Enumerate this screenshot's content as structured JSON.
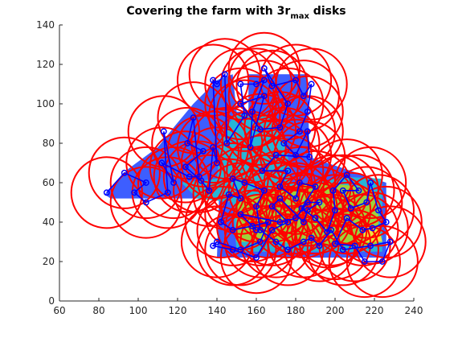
{
  "chart_data": {
    "type": "scatter",
    "title": "Covering the farm with 3r",
    "title_subscript": "max",
    "title_suffix": " disks",
    "xlabel": "",
    "ylabel": "",
    "xlim": [
      60,
      240
    ],
    "ylim": [
      0,
      140
    ],
    "xticks": [
      60,
      80,
      100,
      120,
      140,
      160,
      180,
      200,
      220,
      240
    ],
    "yticks": [
      0,
      20,
      40,
      60,
      80,
      100,
      120,
      140
    ],
    "grid": false,
    "legend": "none",
    "disk_radius": 7.5,
    "colors": {
      "disk": "#ff0000",
      "path": "#0000ff",
      "farm_low": "#3d5eff",
      "farm_mid": "#27b5d6",
      "farm_high": "#9fd13a",
      "farm_peak": "#f2e23a"
    },
    "farm_regions": [
      {
        "polygon": [
          [
            83,
            54
          ],
          [
            95,
            67
          ],
          [
            110,
            78
          ],
          [
            118,
            88
          ],
          [
            128,
            100
          ],
          [
            140,
            112
          ],
          [
            148,
            115
          ],
          [
            150,
            96
          ],
          [
            156,
            96
          ],
          [
            156,
            115
          ],
          [
            186,
            115
          ],
          [
            187,
            73
          ],
          [
            226,
            60
          ],
          [
            226,
            22
          ],
          [
            140,
            22
          ],
          [
            141,
            52
          ],
          [
            128,
            52
          ],
          [
            100,
            52
          ],
          [
            86,
            52
          ]
        ],
        "level": "low"
      },
      {
        "polygon": [
          [
            122,
            60
          ],
          [
            140,
            62
          ],
          [
            142,
            85
          ],
          [
            150,
            95
          ],
          [
            165,
            95
          ],
          [
            175,
            80
          ],
          [
            178,
            60
          ],
          [
            190,
            60
          ],
          [
            205,
            63
          ],
          [
            224,
            62
          ],
          [
            224,
            25
          ],
          [
            150,
            25
          ],
          [
            148,
            50
          ],
          [
            130,
            52
          ]
        ],
        "level": "mid"
      },
      {
        "polygon": [
          [
            150,
            52
          ],
          [
            165,
            55
          ],
          [
            178,
            58
          ],
          [
            195,
            60
          ],
          [
            212,
            58
          ],
          [
            222,
            55
          ],
          [
            222,
            28
          ],
          [
            200,
            28
          ],
          [
            170,
            30
          ],
          [
            150,
            30
          ]
        ],
        "level": "high"
      },
      {
        "polygon": [
          [
            214,
            38
          ],
          [
            222,
            38
          ],
          [
            224,
            30
          ],
          [
            215,
            30
          ]
        ],
        "level": "peak"
      }
    ],
    "path": [
      [
        84,
        55
      ],
      [
        93,
        65
      ],
      [
        104,
        60
      ],
      [
        98,
        55
      ],
      [
        104,
        50
      ],
      [
        115,
        55
      ],
      [
        113,
        86
      ],
      [
        118,
        60
      ],
      [
        112,
        70
      ],
      [
        126,
        63
      ],
      [
        131,
        63
      ],
      [
        128,
        93
      ],
      [
        125,
        80
      ],
      [
        133,
        76
      ],
      [
        124,
        68
      ],
      [
        132,
        61
      ],
      [
        136,
        56
      ],
      [
        138,
        78
      ],
      [
        140,
        70
      ],
      [
        138,
        112
      ],
      [
        140,
        110
      ],
      [
        144,
        115
      ],
      [
        145,
        80
      ],
      [
        154,
        94
      ],
      [
        152,
        110
      ],
      [
        160,
        110
      ],
      [
        164,
        112
      ],
      [
        158,
        96
      ],
      [
        157,
        78
      ],
      [
        164,
        104
      ],
      [
        152,
        100
      ],
      [
        162,
        87
      ],
      [
        172,
        88
      ],
      [
        176,
        100
      ],
      [
        164,
        118
      ],
      [
        168,
        109
      ],
      [
        180,
        112
      ],
      [
        184,
        104
      ],
      [
        188,
        110
      ],
      [
        186,
        96
      ],
      [
        182,
        86
      ],
      [
        174,
        80
      ],
      [
        180,
        74
      ],
      [
        186,
        86
      ],
      [
        187,
        73
      ],
      [
        170,
        74
      ],
      [
        163,
        66
      ],
      [
        176,
        66
      ],
      [
        172,
        58
      ],
      [
        180,
        52
      ],
      [
        182,
        60
      ],
      [
        190,
        58
      ],
      [
        183,
        47
      ],
      [
        190,
        42
      ],
      [
        196,
        35
      ],
      [
        200,
        46
      ],
      [
        199,
        56
      ],
      [
        206,
        64
      ],
      [
        212,
        56
      ],
      [
        204,
        56
      ],
      [
        208,
        47
      ],
      [
        216,
        50
      ],
      [
        218,
        60
      ],
      [
        222,
        46
      ],
      [
        226,
        40
      ],
      [
        219,
        37
      ],
      [
        214,
        36
      ],
      [
        206,
        42
      ],
      [
        200,
        29
      ],
      [
        210,
        28
      ],
      [
        215,
        20
      ],
      [
        224,
        20
      ],
      [
        228,
        30
      ],
      [
        218,
        28
      ],
      [
        204,
        26
      ],
      [
        198,
        36
      ],
      [
        192,
        28
      ],
      [
        188,
        32
      ],
      [
        184,
        30
      ],
      [
        176,
        26
      ],
      [
        170,
        30
      ],
      [
        162,
        36
      ],
      [
        160,
        48
      ],
      [
        164,
        56
      ],
      [
        154,
        60
      ],
      [
        148,
        62
      ],
      [
        152,
        52
      ],
      [
        146,
        54
      ],
      [
        142,
        40
      ],
      [
        148,
        36
      ],
      [
        158,
        38
      ],
      [
        166,
        40
      ],
      [
        162,
        30
      ],
      [
        152,
        26
      ],
      [
        140,
        30
      ],
      [
        138,
        28
      ],
      [
        148,
        26
      ],
      [
        160,
        22
      ],
      [
        168,
        36
      ],
      [
        176,
        40
      ],
      [
        168,
        48
      ],
      [
        172,
        52
      ],
      [
        184,
        40
      ],
      [
        186,
        46
      ],
      [
        192,
        50
      ],
      [
        186,
        50
      ],
      [
        180,
        42
      ],
      [
        172,
        40
      ],
      [
        152,
        44
      ],
      [
        160,
        36
      ]
    ],
    "disks": [
      [
        84,
        55
      ],
      [
        93,
        65
      ],
      [
        104,
        60
      ],
      [
        104,
        50
      ],
      [
        115,
        55
      ],
      [
        113,
        86
      ],
      [
        118,
        60
      ],
      [
        112,
        70
      ],
      [
        126,
        63
      ],
      [
        131,
        63
      ],
      [
        128,
        93
      ],
      [
        125,
        80
      ],
      [
        133,
        76
      ],
      [
        124,
        68
      ],
      [
        136,
        56
      ],
      [
        138,
        78
      ],
      [
        140,
        70
      ],
      [
        138,
        112
      ],
      [
        144,
        115
      ],
      [
        145,
        80
      ],
      [
        154,
        94
      ],
      [
        152,
        110
      ],
      [
        160,
        110
      ],
      [
        164,
        112
      ],
      [
        158,
        96
      ],
      [
        157,
        78
      ],
      [
        164,
        104
      ],
      [
        152,
        100
      ],
      [
        162,
        87
      ],
      [
        172,
        88
      ],
      [
        176,
        100
      ],
      [
        164,
        118
      ],
      [
        168,
        109
      ],
      [
        180,
        112
      ],
      [
        184,
        104
      ],
      [
        188,
        110
      ],
      [
        186,
        96
      ],
      [
        182,
        86
      ],
      [
        174,
        80
      ],
      [
        180,
        74
      ],
      [
        186,
        86
      ],
      [
        187,
        73
      ],
      [
        170,
        74
      ],
      [
        163,
        66
      ],
      [
        176,
        66
      ],
      [
        172,
        58
      ],
      [
        180,
        52
      ],
      [
        182,
        60
      ],
      [
        190,
        58
      ],
      [
        183,
        47
      ],
      [
        190,
        42
      ],
      [
        196,
        35
      ],
      [
        200,
        46
      ],
      [
        199,
        56
      ],
      [
        206,
        64
      ],
      [
        212,
        56
      ],
      [
        204,
        56
      ],
      [
        208,
        47
      ],
      [
        216,
        50
      ],
      [
        218,
        60
      ],
      [
        222,
        46
      ],
      [
        226,
        40
      ],
      [
        219,
        37
      ],
      [
        214,
        36
      ],
      [
        206,
        42
      ],
      [
        200,
        29
      ],
      [
        210,
        28
      ],
      [
        215,
        20
      ],
      [
        224,
        20
      ],
      [
        228,
        30
      ],
      [
        204,
        26
      ],
      [
        198,
        36
      ],
      [
        192,
        28
      ],
      [
        184,
        30
      ],
      [
        176,
        26
      ],
      [
        170,
        30
      ],
      [
        162,
        36
      ],
      [
        160,
        48
      ],
      [
        164,
        56
      ],
      [
        154,
        60
      ],
      [
        148,
        62
      ],
      [
        152,
        52
      ],
      [
        146,
        54
      ],
      [
        142,
        40
      ],
      [
        148,
        36
      ],
      [
        158,
        38
      ],
      [
        166,
        40
      ],
      [
        162,
        30
      ],
      [
        152,
        26
      ],
      [
        140,
        30
      ],
      [
        148,
        26
      ],
      [
        160,
        22
      ],
      [
        168,
        36
      ],
      [
        176,
        40
      ],
      [
        168,
        48
      ],
      [
        172,
        52
      ],
      [
        184,
        40
      ],
      [
        186,
        46
      ],
      [
        192,
        50
      ],
      [
        180,
        42
      ],
      [
        152,
        44
      ]
    ]
  }
}
